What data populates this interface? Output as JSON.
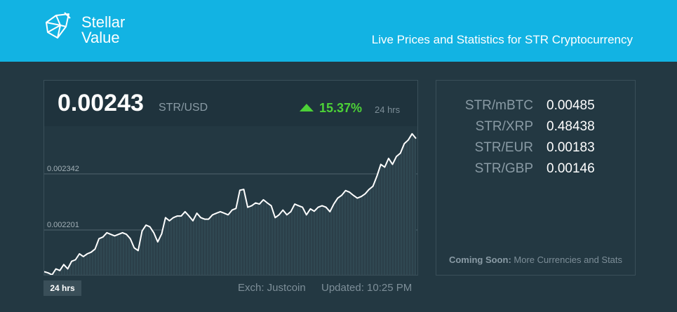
{
  "header": {
    "logo_line1": "Stellar",
    "logo_line2": "Value",
    "tagline": "Live Prices and Statistics for STR Cryptocurrency",
    "background_color": "#12b3e3"
  },
  "ticker": {
    "price": "0.00243",
    "pair": "STR/USD",
    "change_icon": "up-triangle-icon",
    "change": "15.37%",
    "change_period": "24 hrs",
    "change_color": "#4cd137"
  },
  "chart_data": {
    "type": "area",
    "x_label": "",
    "y_label": "",
    "y_ticks": [
      0.002342,
      0.002201
    ],
    "y_tick_labels": [
      "0.002342",
      "0.002201"
    ],
    "ylim": [
      0.002088,
      0.002462
    ],
    "grid": true,
    "series": [
      {
        "values": [
          0.002096,
          0.002093,
          0.002088,
          0.002103,
          0.002099,
          0.002114,
          0.002103,
          0.002122,
          0.002126,
          0.002141,
          0.002134,
          0.002141,
          0.002145,
          0.002153,
          0.002179,
          0.002183,
          0.002194,
          0.00219,
          0.002186,
          0.00219,
          0.002194,
          0.00219,
          0.002179,
          0.002156,
          0.002149,
          0.002198,
          0.002213,
          0.002209,
          0.002194,
          0.002171,
          0.002191,
          0.002232,
          0.002224,
          0.002232,
          0.002236,
          0.002236,
          0.002247,
          0.002236,
          0.002224,
          0.002243,
          0.002232,
          0.002228,
          0.002228,
          0.002239,
          0.002243,
          0.002247,
          0.002243,
          0.002239,
          0.002251,
          0.002255,
          0.002301,
          0.002303,
          0.002258,
          0.002262,
          0.002269,
          0.002266,
          0.002277,
          0.002269,
          0.002262,
          0.002232,
          0.002239,
          0.002251,
          0.002239,
          0.002247,
          0.002266,
          0.002262,
          0.002258,
          0.002239,
          0.002254,
          0.002248,
          0.002258,
          0.002262,
          0.002258,
          0.002247,
          0.002266,
          0.002281,
          0.002288,
          0.0023,
          0.002296,
          0.002288,
          0.002281,
          0.002285,
          0.002292,
          0.002303,
          0.002311,
          0.002336,
          0.002366,
          0.002359,
          0.002381,
          0.002366,
          0.002386,
          0.002394,
          0.002418,
          0.002427,
          0.002443,
          0.002431
        ]
      }
    ]
  },
  "controls": {
    "range_button": "24 hrs",
    "exchange": "Exch: Justcoin",
    "updated": "Updated: 10:25 PM"
  },
  "stats": [
    {
      "label": "STR/mBTC",
      "value": "0.00485"
    },
    {
      "label": "STR/XRP",
      "value": "0.48438"
    },
    {
      "label": "STR/EUR",
      "value": "0.00183"
    },
    {
      "label": "STR/GBP",
      "value": "0.00146"
    }
  ],
  "coming_soon": {
    "label": "Coming Soon:",
    "text": "More Currencies and Stats"
  }
}
